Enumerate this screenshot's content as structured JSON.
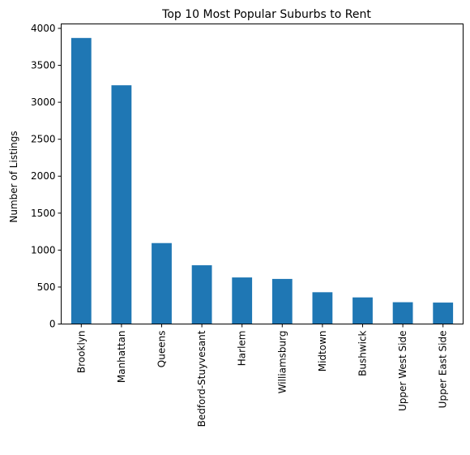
{
  "chart_data": {
    "type": "bar",
    "title": "Top 10 Most Popular Suburbs to Rent",
    "xlabel": "",
    "ylabel": "Number of Listings",
    "categories": [
      "Brooklyn",
      "Manhattan",
      "Queens",
      "Bedford-Stuyvesant",
      "Harlem",
      "Williamsburg",
      "Midtown",
      "Bushwick",
      "Upper West Side",
      "Upper East Side"
    ],
    "values": [
      3870,
      3230,
      1095,
      795,
      630,
      610,
      430,
      360,
      295,
      290
    ],
    "ylim": [
      0,
      4060
    ],
    "yticks": [
      0,
      500,
      1000,
      1500,
      2000,
      2500,
      3000,
      3500,
      4000
    ],
    "grid": false,
    "legend": "none",
    "bar_color": "#1f77b4"
  }
}
